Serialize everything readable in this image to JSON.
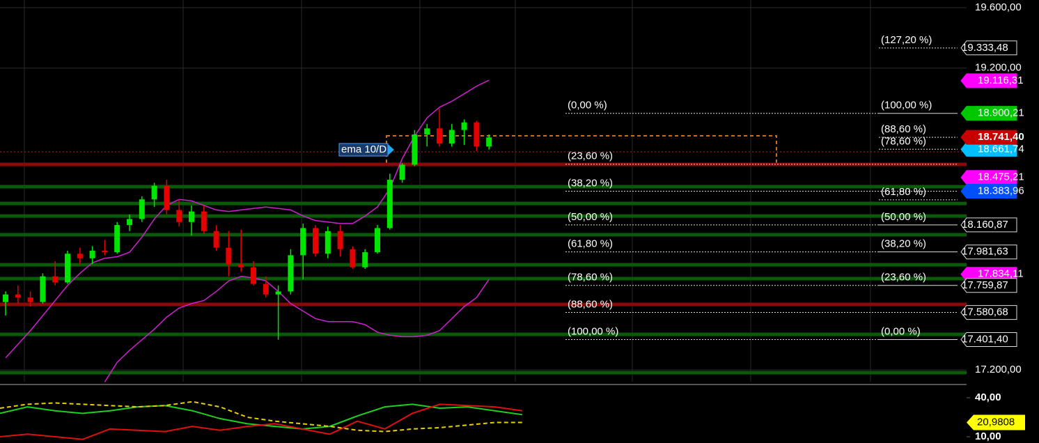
{
  "chart_data": {
    "type": "candlestick",
    "ylim": [
      17122,
      19651
    ],
    "yticks": [
      {
        "value": 19600,
        "label": "19.600,00"
      },
      {
        "value": 19200,
        "label": "19.200,00"
      },
      {
        "value": 17200,
        "label": "17.200,00"
      }
    ],
    "grid": true,
    "up_color": "#00e600",
    "down_color": "#e60000",
    "open": [
      17650,
      17700,
      17680,
      17650,
      17820,
      17780,
      17970,
      17940,
      17990,
      17980,
      18160,
      18200,
      18330,
      18420,
      18260,
      18180,
      18250,
      18120,
      18010,
      17900,
      17880,
      17770,
      17700,
      17720,
      17960,
      18140,
      17970,
      18120,
      18000,
      17880,
      17980,
      18140,
      18460,
      18560,
      18760,
      18800,
      18700,
      18790,
      18840,
      18680
    ],
    "high": [
      17720,
      17760,
      17720,
      17840,
      17920,
      17990,
      18010,
      18020,
      18060,
      18180,
      18230,
      18350,
      18440,
      18460,
      18330,
      18290,
      18290,
      18160,
      18120,
      18130,
      17920,
      17820,
      17760,
      18000,
      18170,
      18160,
      18150,
      18160,
      18020,
      18000,
      18160,
      18500,
      18570,
      18790,
      18830,
      18930,
      18830,
      18860,
      18850,
      18760
    ],
    "low": [
      17560,
      17640,
      17620,
      17640,
      17760,
      17770,
      17900,
      17900,
      17960,
      17970,
      18120,
      18180,
      18280,
      18230,
      18150,
      18090,
      18100,
      17990,
      17820,
      17850,
      17760,
      17680,
      17400,
      17700,
      17800,
      17950,
      17940,
      17950,
      17870,
      17870,
      17970,
      18130,
      18440,
      18550,
      18680,
      18680,
      18680,
      18690,
      18650,
      18660
    ],
    "close": [
      17700,
      17680,
      17650,
      17820,
      17780,
      17970,
      17940,
      17990,
      17980,
      18160,
      18200,
      18330,
      18420,
      18260,
      18180,
      18250,
      18120,
      18010,
      17900,
      17880,
      17770,
      17700,
      17720,
      17960,
      18140,
      17970,
      18120,
      18000,
      17880,
      17980,
      18140,
      18460,
      18560,
      18760,
      18800,
      18700,
      18790,
      18840,
      18680,
      18741
    ],
    "bands": [
      {
        "color": "#d020d0",
        "values": [
          17280,
          17370,
          17460,
          17560,
          17660,
          17760,
          17840,
          17910,
          17940,
          17950,
          17980,
          18080,
          18200,
          18290,
          18330,
          18320,
          18290,
          18260,
          18250,
          18260,
          18270,
          18280,
          18270,
          18260,
          18220,
          18190,
          18180,
          18170,
          18170,
          18220,
          18280,
          18400,
          18600,
          18750,
          18870,
          18940,
          18980,
          19030,
          19080,
          19120
        ]
      },
      {
        "color": "#d020d0",
        "values": [
          null,
          null,
          null,
          null,
          null,
          null,
          null,
          null,
          17120,
          17250,
          17330,
          17400,
          17470,
          17550,
          17610,
          17640,
          17660,
          17720,
          17790,
          17820,
          17810,
          17790,
          17720,
          17640,
          17590,
          17540,
          17520,
          17520,
          17520,
          17500,
          17450,
          17430,
          17420,
          17420,
          17430,
          17460,
          17540,
          17620,
          17680,
          17800
        ]
      }
    ],
    "levels": [
      {
        "value": 18414,
        "color": "#0a5a0a"
      },
      {
        "value": 18303,
        "color": "#0a5a0a"
      },
      {
        "value": 18220,
        "color": "#0a5a0a"
      },
      {
        "value": 18096,
        "color": "#0a5a0a"
      },
      {
        "value": 17897,
        "color": "#0a5a0a"
      },
      {
        "value": 17805,
        "color": "#0a5a0a"
      },
      {
        "value": 17436,
        "color": "#0a5a0a"
      },
      {
        "value": 17182,
        "color": "#0a5a0a"
      },
      {
        "value": 18562,
        "color": "#8a0a0a"
      },
      {
        "value": 17634,
        "color": "#8a0a0a"
      }
    ],
    "fib_left": [
      {
        "label": "(0,00 %)",
        "value": 18900
      },
      {
        "label": "(23,60 %)",
        "value": 18563
      },
      {
        "label": "(38,20 %)",
        "value": 18384
      },
      {
        "label": "(50,00 %)",
        "value": 18161
      },
      {
        "label": "(61,80 %)",
        "value": 17982
      },
      {
        "label": "(78,60 %)",
        "value": 17760
      },
      {
        "label": "(88,60 %)",
        "value": 17581
      },
      {
        "label": "(100,00 %)",
        "value": 17401
      }
    ],
    "fib_right": [
      {
        "label": "(127,20 %)",
        "value": 19333
      },
      {
        "label": "(100,00 %)",
        "value": 18900
      },
      {
        "label": "(88,60 %)",
        "value": 18741
      },
      {
        "label": "(78,60 %)",
        "value": 18662
      },
      {
        "label": "(61,80 %)",
        "value": 18327
      },
      {
        "label": "(50,00 %)",
        "value": 18161
      },
      {
        "label": "(38,20 %)",
        "value": 17982
      },
      {
        "label": "(23,60 %)",
        "value": 17760
      },
      {
        "label": "(0,00 %)",
        "value": 17401
      }
    ],
    "price_tags": [
      {
        "value": 19333.48,
        "label": "19.333,48",
        "color": "#000000"
      },
      {
        "value": 19116.31,
        "label": "19.116,31",
        "color": "#ff00ff"
      },
      {
        "value": 18900.21,
        "label": "18.900,21",
        "color": "#00c800"
      },
      {
        "value": 18661.74,
        "label": "18.661,74",
        "color": "#00bfff"
      },
      {
        "value": 18475.21,
        "label": "18.475,21",
        "color": "#ff00ff"
      },
      {
        "value": 18383.96,
        "label": "18.383,96",
        "color": "#0050ff"
      },
      {
        "value": 18160.87,
        "label": "18.160,87",
        "color": "#000000"
      },
      {
        "value": 17981.63,
        "label": "17.981,63",
        "color": "#000000"
      },
      {
        "value": 17834.11,
        "label": "17.834,11",
        "color": "#ff00ff"
      },
      {
        "value": 17759.87,
        "label": "17.759,87",
        "color": "#000000"
      },
      {
        "value": 17580.68,
        "label": "17.580,68",
        "color": "#000000"
      },
      {
        "value": 17401.4,
        "label": "17.401,40",
        "color": "#000000"
      },
      {
        "value": 18741.4,
        "label": "18.741,40",
        "color": "#c80000"
      }
    ],
    "annotation": "ema 10/D",
    "oscillator": {
      "ylim": [
        5.2,
        48.6
      ],
      "yticks": [
        {
          "value": 40,
          "label": "40,00"
        },
        {
          "value": 10,
          "label": "10,00"
        }
      ],
      "series": [
        {
          "color": "#20d020",
          "values": [
            28,
            33,
            30,
            28,
            30,
            33,
            34,
            30,
            24,
            20,
            18,
            16,
            18,
            26,
            33,
            35,
            32,
            33,
            30,
            27
          ]
        },
        {
          "color": "#e01010",
          "values": [
            10,
            12,
            10,
            8,
            16,
            15,
            14,
            18,
            15,
            18,
            20,
            16,
            12,
            22,
            16,
            28,
            35,
            34,
            33,
            30
          ]
        },
        {
          "color": "#e8d000",
          "values": [
            32,
            35,
            36,
            35,
            34,
            33,
            34,
            37,
            33,
            25,
            22,
            20,
            18,
            15,
            14,
            16,
            17,
            19,
            21,
            21
          ]
        }
      ],
      "tag": {
        "value": 20.9808,
        "label": "20,9808",
        "color": "#ffff00"
      }
    }
  }
}
